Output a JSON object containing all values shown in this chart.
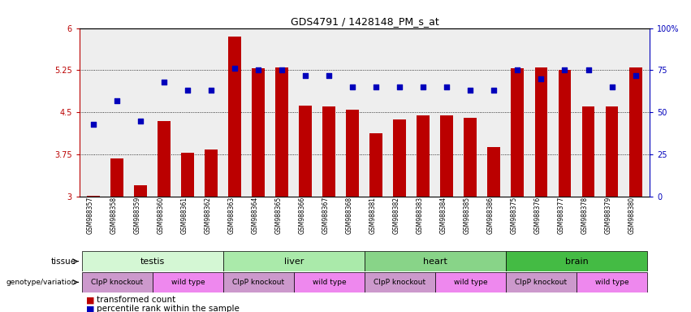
{
  "title": "GDS4791 / 1428148_PM_s_at",
  "samples": [
    "GSM988357",
    "GSM988358",
    "GSM988359",
    "GSM988360",
    "GSM988361",
    "GSM988362",
    "GSM988363",
    "GSM988364",
    "GSM988365",
    "GSM988366",
    "GSM988367",
    "GSM988368",
    "GSM988381",
    "GSM988382",
    "GSM988383",
    "GSM988384",
    "GSM988385",
    "GSM988386",
    "GSM988375",
    "GSM988376",
    "GSM988377",
    "GSM988378",
    "GSM988379",
    "GSM988380"
  ],
  "bar_values": [
    3.02,
    3.68,
    3.2,
    4.35,
    3.78,
    3.84,
    5.85,
    5.28,
    5.3,
    4.62,
    4.6,
    4.55,
    4.13,
    4.38,
    4.45,
    4.45,
    4.4,
    3.88,
    5.28,
    5.3,
    5.25,
    4.6,
    4.6,
    5.3
  ],
  "dot_percentiles": [
    43,
    57,
    45,
    68,
    63,
    63,
    76,
    75,
    75,
    72,
    72,
    65,
    65,
    65,
    65,
    65,
    63,
    63,
    75,
    70,
    75,
    75,
    65,
    72
  ],
  "ylim_left": [
    3.0,
    6.0
  ],
  "ylim_right": [
    0,
    100
  ],
  "yticks_left": [
    3.0,
    3.75,
    4.5,
    5.25,
    6.0
  ],
  "ytick_labels_left": [
    "3",
    "3.75",
    "4.5",
    "5.25",
    "6"
  ],
  "yticks_right": [
    0,
    25,
    50,
    75,
    100
  ],
  "ytick_labels_right": [
    "0",
    "25",
    "50",
    "75",
    "100%"
  ],
  "bar_color": "#bb0000",
  "dot_color": "#0000bb",
  "tissues": [
    {
      "label": "testis",
      "start": 0,
      "end": 6,
      "color": "#d4f7d4"
    },
    {
      "label": "liver",
      "start": 6,
      "end": 12,
      "color": "#aaeaaa"
    },
    {
      "label": "heart",
      "start": 12,
      "end": 18,
      "color": "#88d488"
    },
    {
      "label": "brain",
      "start": 18,
      "end": 24,
      "color": "#44bb44"
    }
  ],
  "genotypes": [
    {
      "label": "ClpP knockout",
      "start": 0,
      "end": 3,
      "color": "#cc99cc"
    },
    {
      "label": "wild type",
      "start": 3,
      "end": 6,
      "color": "#ee88ee"
    },
    {
      "label": "ClpP knockout",
      "start": 6,
      "end": 9,
      "color": "#cc99cc"
    },
    {
      "label": "wild type",
      "start": 9,
      "end": 12,
      "color": "#ee88ee"
    },
    {
      "label": "ClpP knockout",
      "start": 12,
      "end": 15,
      "color": "#cc99cc"
    },
    {
      "label": "wild type",
      "start": 15,
      "end": 18,
      "color": "#ee88ee"
    },
    {
      "label": "ClpP knockout",
      "start": 18,
      "end": 21,
      "color": "#cc99cc"
    },
    {
      "label": "wild type",
      "start": 21,
      "end": 24,
      "color": "#ee88ee"
    }
  ],
  "background_color": "#ffffff",
  "plot_bg_color": "#eeeeee"
}
